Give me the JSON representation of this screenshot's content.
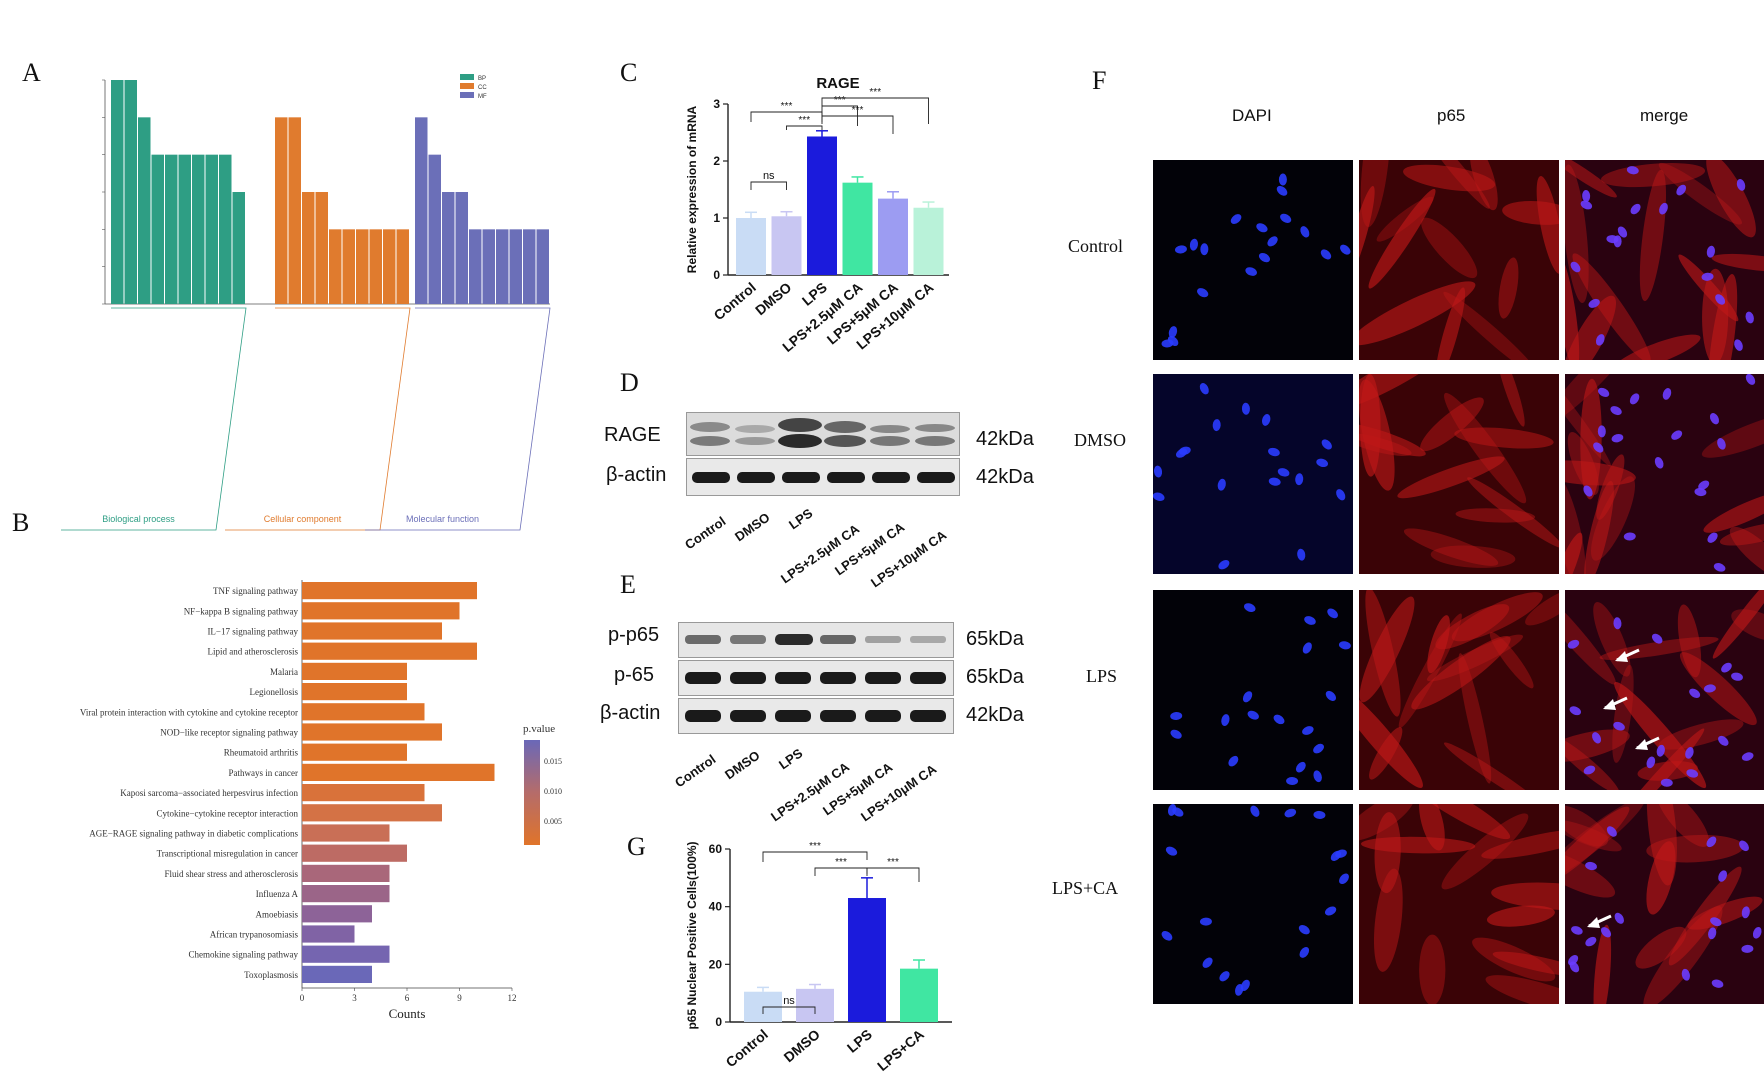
{
  "panels": {
    "A": "A",
    "B": "B",
    "C": "C",
    "D": "D",
    "E": "E",
    "F": "F",
    "G": "G"
  },
  "panelA": {
    "legend": [
      "BP",
      "CC",
      "MF"
    ],
    "colors": [
      "#2e9e84",
      "#e07b2e",
      "#6b6fb8"
    ],
    "groups": [
      {
        "name": "Biological process",
        "values": [
          6,
          6,
          5,
          4,
          4,
          4,
          4,
          4,
          4,
          3
        ]
      },
      {
        "name": "Cellular component",
        "values": [
          5,
          5,
          3,
          3,
          2,
          2,
          2,
          2,
          2,
          2
        ]
      },
      {
        "name": "Molecular function",
        "values": [
          5,
          4,
          3,
          3,
          2,
          2,
          2,
          2,
          2,
          2
        ]
      }
    ]
  },
  "panelB": {
    "terms": [
      "TNF signaling pathway",
      "NF−kappa B signaling pathway",
      "IL−17 signaling pathway",
      "Lipid and atherosclerosis",
      "Malaria",
      "Legionellosis",
      "Viral protein interaction with cytokine and cytokine receptor",
      "NOD−like receptor signaling pathway",
      "Rheumatoid arthritis",
      "Pathways in cancer",
      "Kaposi sarcoma−associated herpesvirus infection",
      "Cytokine−cytokine receptor interaction",
      "AGE−RAGE signaling pathway in diabetic complications",
      "Transcriptional misregulation in cancer",
      "Fluid shear stress and atherosclerosis",
      "Influenza A",
      "Amoebiasis",
      "African trypanosomiasis",
      "Chemokine signaling pathway",
      "Toxoplasmosis"
    ],
    "counts": [
      10,
      9,
      8,
      10,
      6,
      6,
      7,
      8,
      6,
      11,
      7,
      8,
      5,
      6,
      5,
      5,
      4,
      3,
      5,
      4
    ],
    "colors": [
      "#e0742a",
      "#e0742a",
      "#e0742a",
      "#e0742a",
      "#e0742a",
      "#e0742a",
      "#e0742a",
      "#e0742a",
      "#e0742a",
      "#e0742a",
      "#d9723a",
      "#d47245",
      "#c96f56",
      "#bd6b64",
      "#a9677a",
      "#9b6588",
      "#8d6398",
      "#8063a5",
      "#7565b0",
      "#6a68b8"
    ],
    "xlabel": "Counts",
    "xticks": [
      "0",
      "3",
      "6",
      "9",
      "12"
    ],
    "legend_title": "p.value",
    "legend_ticks": [
      "0.015",
      "0.010",
      "0.005"
    ]
  },
  "chart_data": [
    {
      "type": "bar",
      "title": "RAGE",
      "ylabel": "Relative expression of mRNA",
      "categories": [
        "Control",
        "DMSO",
        "LPS",
        "LPS+2.5μM CA",
        "LPS+5μM CA",
        "LPS+10μM CA"
      ],
      "values": [
        1.0,
        1.03,
        2.43,
        1.62,
        1.34,
        1.18
      ],
      "errors": [
        0.1,
        0.08,
        0.1,
        0.1,
        0.12,
        0.1
      ],
      "colors": [
        "#c9dcf5",
        "#c8c6f2",
        "#1b1bdc",
        "#40e6a2",
        "#9c9cf2",
        "#b9f2d9"
      ],
      "ylim": [
        0,
        3
      ],
      "yticks": [
        "0",
        "1",
        "2",
        "3"
      ],
      "brackets": [
        {
          "from": 0,
          "to": 1,
          "label": "ns"
        },
        {
          "from": 0,
          "to": 2,
          "label": "***"
        },
        {
          "from": 1,
          "to": 2,
          "label": "***"
        },
        {
          "from": 2,
          "to": 3,
          "label": "***"
        },
        {
          "from": 2,
          "to": 4,
          "label": "***"
        },
        {
          "from": 2,
          "to": 5,
          "label": "***"
        }
      ]
    },
    {
      "type": "bar",
      "ylabel": "p65 Nuclear Positive Cells(100%)",
      "categories": [
        "Control",
        "DMSO",
        "LPS",
        "LPS+CA"
      ],
      "values": [
        10.5,
        11.5,
        43,
        18.5
      ],
      "errors": [
        1.5,
        1.5,
        7,
        3
      ],
      "colors": [
        "#c9dcf5",
        "#c8c6f2",
        "#1b1bdc",
        "#40e6a2"
      ],
      "ylim": [
        0,
        60
      ],
      "yticks": [
        "0",
        "20",
        "40",
        "60"
      ],
      "brackets": [
        {
          "from": 0,
          "to": 1,
          "label": "ns"
        },
        {
          "from": 0,
          "to": 2,
          "label": "***"
        },
        {
          "from": 1,
          "to": 2,
          "label": "***"
        },
        {
          "from": 2,
          "to": 3,
          "label": "***"
        }
      ]
    }
  ],
  "panelD": {
    "rows": [
      "RAGE",
      "β-actin"
    ],
    "kda": [
      "42kDa",
      "42kDa"
    ],
    "lanes": [
      "Control",
      "DMSO",
      "LPS",
      "LPS+2.5μM CA",
      "LPS+5μM CA",
      "LPS+10μM CA"
    ]
  },
  "panelE": {
    "rows": [
      "p-p65",
      "p-65",
      "β-actin"
    ],
    "kda": [
      "65kDa",
      "65kDa",
      "42kDa"
    ],
    "lanes": [
      "Control",
      "DMSO",
      "LPS",
      "LPS+2.5μM CA",
      "LPS+5μM CA",
      "LPS+10μM CA"
    ]
  },
  "panelF": {
    "columns": [
      "DAPI",
      "p65",
      "merge"
    ],
    "rows": [
      "Control",
      "DMSO",
      "LPS",
      "LPS+CA"
    ]
  }
}
